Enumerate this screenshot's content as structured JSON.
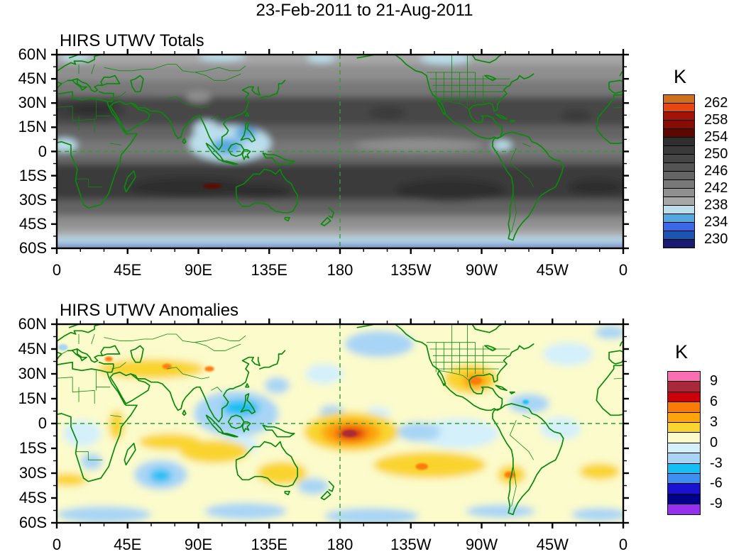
{
  "page": {
    "title": "23-Feb-2011 to 21-Aug-2011"
  },
  "axes": {
    "lat_labels": [
      "60N",
      "45N",
      "30N",
      "15N",
      "0",
      "15S",
      "30S",
      "45S",
      "60S"
    ],
    "lon_labels": [
      "0",
      "45E",
      "90E",
      "135E",
      "180",
      "135W",
      "90W",
      "45W",
      "0"
    ]
  },
  "colors": {
    "coast_green": "#0a8a0a",
    "dash_green": "#2f9e2f",
    "axis_black": "#000000",
    "background": "#ffffff"
  },
  "chart_data": [
    {
      "type": "heatmap",
      "title": "HIRS UTWV Totals",
      "units_label": "K",
      "lon_range": [
        0,
        360
      ],
      "lat_range": [
        -60,
        60
      ],
      "vmax": 262,
      "step": 2,
      "colorbar": {
        "tick_labels": [
          "262",
          "258",
          "254",
          "250",
          "246",
          "242",
          "238",
          "234",
          "230"
        ],
        "colors": [
          "#d06f1e",
          "#e84612",
          "#a31408",
          "#870c04",
          "#5c0800",
          "#2f2f2f",
          "#3a3a3a",
          "#464646",
          "#545454",
          "#646464",
          "#787878",
          "#8f8f8f",
          "#a7a7a7",
          "#bcdfec",
          "#55a7e0",
          "#3a68e8",
          "#1c54b0",
          "#191b70"
        ]
      },
      "description": "Brightness temperature (K): dark (warm/dry) subtropical bands near 20-30N and 10-30S, darkest over N Africa-Arabia and the S Indian Ocean with a small >254K maroon streak west of Australia; cold (blue) regions over the Maritime Continent, Gulf of Guinea, Colombia and high latitudes.",
      "zonal_bands": [
        [
          60,
          54,
          239.5
        ],
        [
          54,
          44,
          241.5
        ],
        [
          44,
          34,
          244
        ],
        [
          34,
          16,
          249
        ],
        [
          16,
          7,
          245.5
        ],
        [
          7,
          -3,
          242.5
        ],
        [
          -3,
          -8,
          246
        ],
        [
          -8,
          -30,
          251
        ],
        [
          -30,
          -40,
          245.5
        ],
        [
          -40,
          -48,
          242
        ],
        [
          -48,
          -53,
          239.5
        ],
        [
          -53,
          -57.5,
          237
        ],
        [
          -57.5,
          -59.2,
          233
        ],
        [
          -59.2,
          -60,
          229
        ]
      ],
      "features": [
        [
          20,
          27,
          26,
          7,
          251
        ],
        [
          22,
          26,
          14,
          4,
          253
        ],
        [
          58,
          29,
          18,
          5,
          249
        ],
        [
          205,
          26,
          30,
          7,
          249
        ],
        [
          210,
          24,
          12,
          4,
          251
        ],
        [
          265,
          25,
          12,
          5,
          249
        ],
        [
          322,
          24,
          24,
          6,
          249
        ],
        [
          330,
          22,
          10,
          4,
          251
        ],
        [
          85,
          -22,
          40,
          6,
          252.5
        ],
        [
          250,
          -24,
          35,
          7,
          252.5
        ],
        [
          343,
          -22,
          18,
          5,
          252.5
        ],
        [
          130,
          -25,
          18,
          5,
          252.5
        ],
        [
          99,
          -21.5,
          6,
          1.5,
          255
        ],
        [
          90,
          34,
          8,
          3.5,
          241.5
        ],
        [
          230,
          4,
          40,
          4,
          241.8
        ],
        [
          110,
          5,
          26,
          11,
          237
        ],
        [
          108,
          3,
          10,
          5,
          234.8
        ],
        [
          120,
          11,
          7,
          4,
          234.8
        ],
        [
          95,
          14,
          8,
          5,
          237
        ],
        [
          5,
          4,
          8,
          4,
          237
        ],
        [
          283,
          4,
          6,
          3,
          237
        ],
        [
          247,
          58,
          16,
          4,
          237
        ],
        [
          12,
          59,
          10,
          3,
          237
        ],
        [
          105,
          59,
          15,
          3,
          237
        ],
        [
          168,
          58,
          9,
          3,
          237
        ]
      ]
    },
    {
      "type": "heatmap",
      "title": "HIRS UTWV Anomalies",
      "units_label": "K",
      "lon_range": [
        0,
        360
      ],
      "lat_range": [
        -60,
        60
      ],
      "vmax": 9,
      "step": 1.5,
      "colorbar": {
        "tick_labels": [
          "9",
          "6",
          "3",
          "0",
          "-3",
          "-6",
          "-9"
        ],
        "colors": [
          "#fa6eb4",
          "#a8293a",
          "#cc000a",
          "#fb7b07",
          "#fca40a",
          "#fad42f",
          "#fbfbcb",
          "#d3f0fb",
          "#a8d5f5",
          "#15bef5",
          "#3e8fef",
          "#1a12ce",
          "#00008c",
          "#9430ee"
        ]
      },
      "description": "Anomaly (K) on a weak positive (pale yellow) background: strong +8K positive anomaly centered near 187E, 6S (west-central equatorial Pacific); positive bands over central Asia, the S Indian Ocean, S Pacific, Texas-Mexico and S America ~30S; negative (blue) anomalies over the Philippines/west Pacific, SW Indian Ocean, Caribbean and the Southern Ocean.",
      "zonal_bands": [
        [
          60,
          -60,
          0.7
        ]
      ],
      "features": [
        [
          16,
          -6,
          12,
          8,
          -1
        ],
        [
          22,
          -23,
          7,
          5,
          -2.2
        ],
        [
          66,
          -31,
          17,
          9,
          -2.2
        ],
        [
          66,
          -31.5,
          7,
          4,
          -3.8
        ],
        [
          114,
          6,
          27,
          14,
          -2.2
        ],
        [
          117,
          9.5,
          12,
          5,
          -3.8
        ],
        [
          116,
          -13,
          12,
          6,
          -1
        ],
        [
          140,
          23,
          8,
          5,
          -2.2
        ],
        [
          170,
          30,
          12,
          6,
          -1
        ],
        [
          205,
          48,
          22,
          8,
          -2.2
        ],
        [
          175,
          7,
          8,
          4,
          -2.2
        ],
        [
          205,
          -8,
          11,
          5,
          -2.2
        ],
        [
          204,
          6,
          8,
          4,
          -1
        ],
        [
          255,
          -6,
          26,
          9,
          -1
        ],
        [
          230,
          -5,
          14,
          6,
          -2.2
        ],
        [
          300,
          12,
          13,
          6,
          -2.2
        ],
        [
          298,
          13,
          2,
          1.2,
          -3.8
        ],
        [
          320,
          -3,
          13,
          7,
          -1
        ],
        [
          325,
          42,
          16,
          7,
          -1
        ],
        [
          352,
          55,
          10,
          4,
          -2.2
        ],
        [
          4,
          46,
          3,
          2,
          -2.2
        ],
        [
          30,
          -55,
          30,
          5,
          -2.2
        ],
        [
          120,
          -53,
          26,
          5,
          -2.2
        ],
        [
          200,
          -56,
          30,
          5,
          -2.2
        ],
        [
          282,
          -53,
          22,
          4,
          -2.2
        ],
        [
          345,
          -55,
          18,
          4,
          -2.2
        ],
        [
          163,
          -38,
          10,
          5,
          -2.2
        ],
        [
          60,
          33,
          34,
          6,
          2.5
        ],
        [
          70,
          34.5,
          3,
          1.6,
          5.5
        ],
        [
          97,
          33,
          3,
          1.6,
          5.5
        ],
        [
          33,
          39,
          2.5,
          1.5,
          5.5
        ],
        [
          38,
          -1,
          5,
          9,
          2.5
        ],
        [
          72,
          -11,
          20,
          5,
          2.5
        ],
        [
          100,
          -17,
          22,
          7,
          2.5
        ],
        [
          143,
          -30,
          16,
          7,
          2.5
        ],
        [
          187,
          -5,
          30,
          12,
          2.5
        ],
        [
          187,
          -5.5,
          19,
          8,
          4
        ],
        [
          187,
          -6,
          12,
          5,
          5.5
        ],
        [
          187,
          -6,
          8,
          3.2,
          7
        ],
        [
          186,
          -6,
          4.5,
          2,
          8.3
        ],
        [
          263,
          27,
          17,
          9,
          2.5
        ],
        [
          266,
          26,
          8,
          5,
          4
        ],
        [
          266,
          26,
          4,
          2.5,
          5.5
        ],
        [
          237,
          -25,
          36,
          8,
          2.5
        ],
        [
          232,
          -26,
          4,
          2,
          5.5
        ],
        [
          289,
          -31,
          9,
          6,
          2.5
        ],
        [
          288,
          -31,
          3.5,
          2,
          5.5
        ],
        [
          345,
          -29,
          13,
          5,
          2.5
        ],
        [
          7,
          -34,
          12,
          4,
          2.5
        ]
      ]
    }
  ]
}
